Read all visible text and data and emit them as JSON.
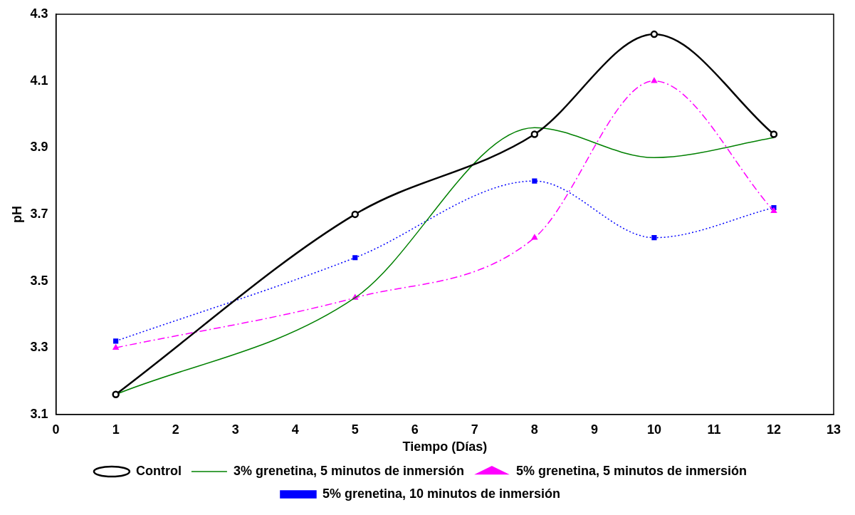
{
  "chart_data": {
    "type": "line",
    "xlabel": "Tiempo (Días)",
    "ylabel": "pH",
    "xlim": [
      0,
      13
    ],
    "xticks": [
      0,
      1,
      2,
      3,
      4,
      5,
      6,
      7,
      8,
      9,
      10,
      11,
      12,
      13
    ],
    "ylim": [
      3.1,
      4.3
    ],
    "yticks": [
      3.1,
      3.3,
      3.5,
      3.7,
      3.9,
      4.1,
      4.3
    ],
    "grid": false,
    "legend": "bottom",
    "x": [
      1,
      5,
      8,
      10,
      12
    ],
    "series": [
      {
        "name": "Control",
        "color": "#000000",
        "marker": "circle",
        "line_style": "solid",
        "values": [
          3.16,
          3.7,
          3.94,
          4.24,
          3.94
        ]
      },
      {
        "name": "3% grenetina, 5 minutos de inmersión",
        "color": "#008000",
        "marker": "none",
        "line_style": "solid",
        "values": [
          3.16,
          3.45,
          3.96,
          3.87,
          3.93
        ]
      },
      {
        "name": "5% grenetina, 5 minutos de inmersión",
        "color": "#ff00ff",
        "marker": "triangle",
        "line_style": "dashed",
        "values": [
          3.3,
          3.45,
          3.63,
          4.1,
          3.71
        ]
      },
      {
        "name": "5% grenetina, 10 minutos de inmersión",
        "color": "#0000ff",
        "marker": "square",
        "line_style": "dotted",
        "values": [
          3.32,
          3.57,
          3.8,
          3.63,
          3.72
        ]
      }
    ]
  }
}
